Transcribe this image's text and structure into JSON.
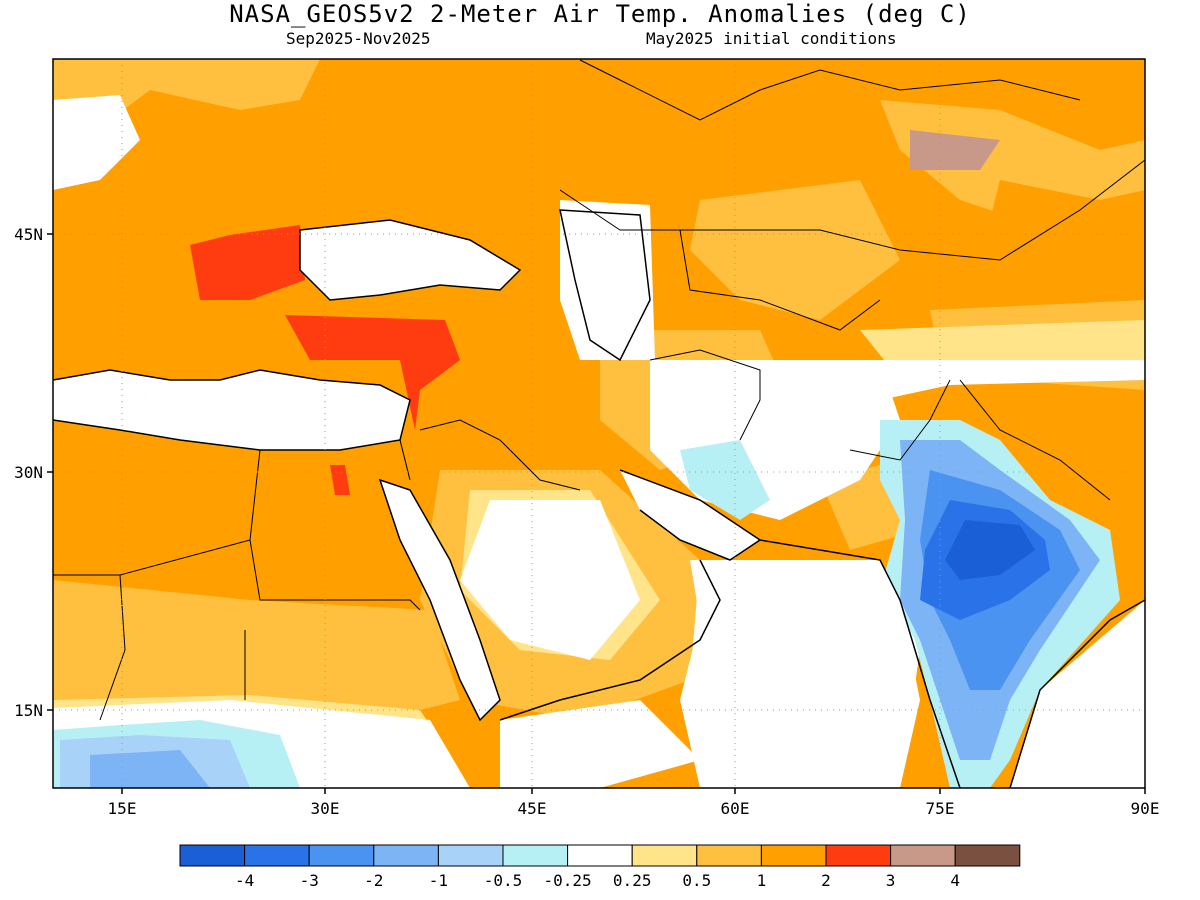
{
  "title": "NASA_GEOS5v2 2-Meter Air Temp. Anomalies (deg C)",
  "subtitle_left": "Sep2025-Nov2025",
  "subtitle_right": "May2025 initial conditions",
  "lat_labels": [
    "45N",
    "30N",
    "15N"
  ],
  "lon_labels": [
    "15E",
    "30E",
    "45E",
    "60E",
    "75E",
    "90E"
  ],
  "colorbar": {
    "colors": [
      "#1a5fd6",
      "#2a72e8",
      "#4a93f0",
      "#7db4f5",
      "#a8d2f8",
      "#b6f0f4",
      "#ffffff",
      "#ffe48a",
      "#ffc040",
      "#ff9f00",
      "#ff3c10",
      "#c89888",
      "#7a5040"
    ],
    "tick_labels": [
      "-4",
      "-3",
      "-2",
      "-1",
      "-0.5",
      "-0.25",
      "0.25",
      "0.5",
      "1",
      "2",
      "3",
      "4"
    ]
  },
  "map": {
    "lon_range": [
      10,
      90
    ],
    "lat_range": [
      10,
      56
    ],
    "dominant_anomaly_color": "#ff9f00",
    "cold_anomaly_region": "India",
    "warm_max_regions": [
      "Balkans",
      "Turkey",
      "Levant"
    ]
  }
}
